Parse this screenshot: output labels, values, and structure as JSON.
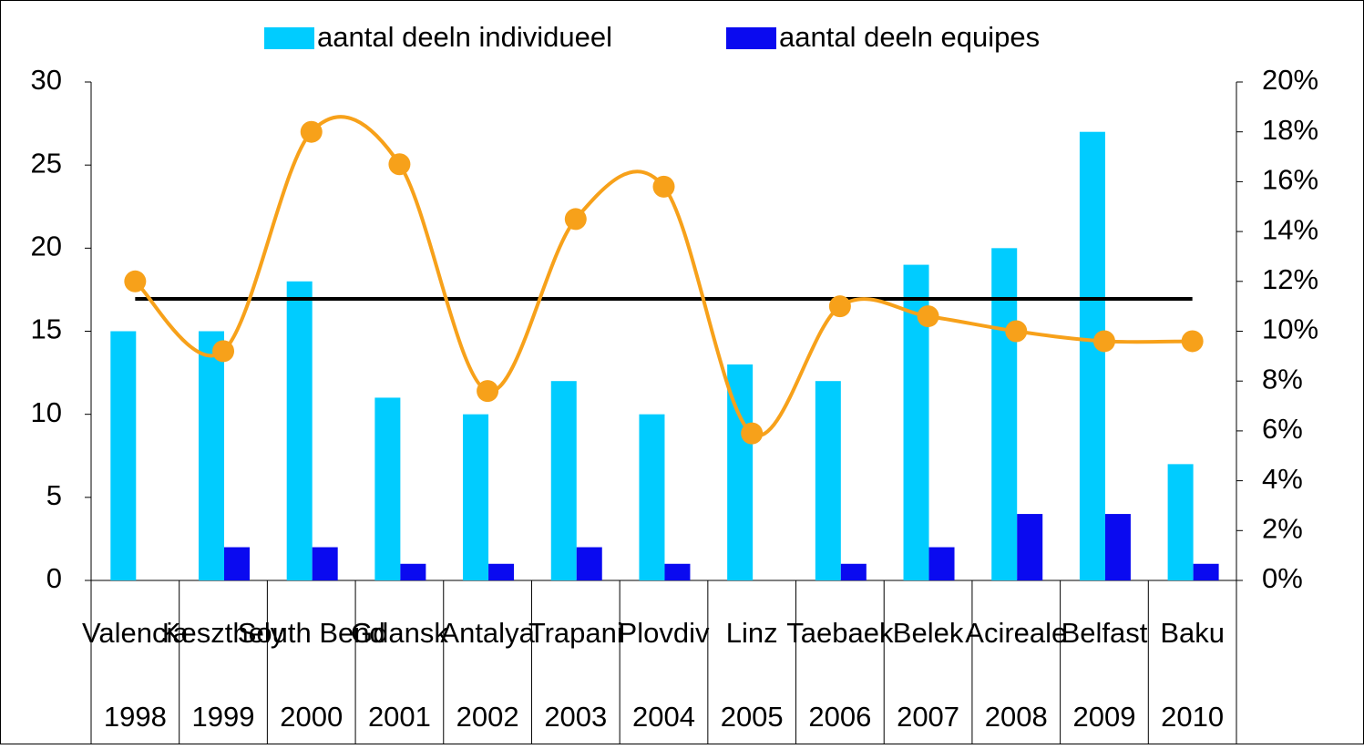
{
  "chart_data": {
    "type": "bar",
    "categories": [
      "Valencia",
      "Keszthely",
      "South Bend",
      "Gdansk",
      "Antalya",
      "Trapani",
      "Plovdiv",
      "Linz",
      "Taebaek",
      "Belek",
      "Acireale",
      "Belfast",
      "Baku"
    ],
    "category_years": [
      "1998",
      "1999",
      "2000",
      "2001",
      "2002",
      "2003",
      "2004",
      "2005",
      "2006",
      "2007",
      "2008",
      "2009",
      "2010"
    ],
    "series": [
      {
        "name": "aantal deeln individueel",
        "color": "#00ccff",
        "values": [
          15,
          15,
          18,
          11,
          10,
          12,
          10,
          13,
          12,
          19,
          20,
          27,
          7
        ]
      },
      {
        "name": "aantal deeln equipes",
        "color": "#0a0af0",
        "values": [
          0,
          2,
          2,
          1,
          1,
          2,
          1,
          0,
          1,
          2,
          4,
          4,
          1
        ]
      }
    ],
    "line_series": {
      "color": "#f7a11a",
      "axis": "y2",
      "values": [
        12.0,
        9.2,
        18.0,
        16.7,
        7.6,
        14.5,
        15.8,
        5.9,
        11.0,
        10.6,
        10.0,
        9.6,
        9.6
      ]
    },
    "reference_line": {
      "color": "#000000",
      "axis": "y2",
      "value": 11.3
    },
    "ylim": [
      0,
      30
    ],
    "yticks": [
      0,
      5,
      10,
      15,
      20,
      25,
      30
    ],
    "y2lim": [
      0,
      20
    ],
    "y2ticks": [
      {
        "value": 0,
        "label": "0%"
      },
      {
        "value": 2,
        "label": "2%"
      },
      {
        "value": 4,
        "label": "4%"
      },
      {
        "value": 6,
        "label": "6%"
      },
      {
        "value": 8,
        "label": "8%"
      },
      {
        "value": 10,
        "label": "10%"
      },
      {
        "value": 12,
        "label": "12%"
      },
      {
        "value": 14,
        "label": "14%"
      },
      {
        "value": 16,
        "label": "16%"
      },
      {
        "value": 18,
        "label": "18%"
      },
      {
        "value": 20,
        "label": "20%"
      }
    ],
    "grid": false,
    "legend": "top"
  }
}
